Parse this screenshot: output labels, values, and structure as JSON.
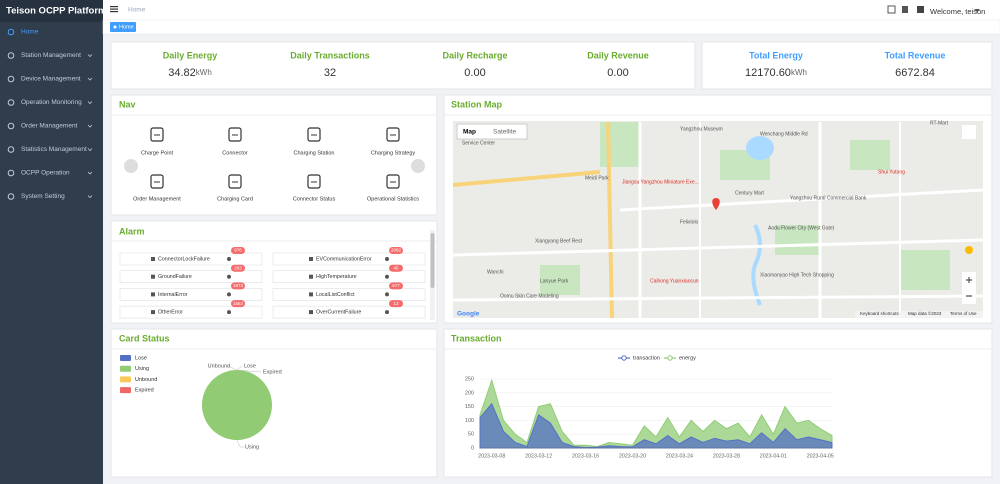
{
  "sidebar": {
    "title": "Teison OCPP Platform",
    "menu": [
      "Home",
      "Station Management",
      "Device Management",
      "Operation Monitoring",
      "Order Management",
      "Statistics Management",
      "OCPP Operation",
      "System Setting"
    ]
  },
  "header": {
    "breadcrumb": "Home",
    "welcome": "Welcome, teison",
    "tab": "Home"
  },
  "stats": [
    {
      "label": "Daily Energy",
      "value": "34.82",
      "unit": "kWh"
    },
    {
      "label": "Daily Transactions",
      "value": "32"
    },
    {
      "label": "Daily Recharge",
      "value": "0.00"
    },
    {
      "label": "Daily Revenue",
      "value": "0.00"
    },
    {
      "label": "Total Energy",
      "value": "12170.60",
      "unit": "kWh"
    },
    {
      "label": "Total Revenue",
      "value": "6672.84"
    }
  ],
  "nav": {
    "title": "Nav",
    "items": [
      "Charge Point",
      "Connector",
      "Charging Station",
      "Charging Strategy",
      "Order Management",
      "Charging Card",
      "Connector Status",
      "Operational Statistics"
    ]
  },
  "alarm": {
    "title": "Alarm",
    "items": [
      {
        "name": "ConnectorLockFailure",
        "count": 876
      },
      {
        "name": "EVCommunicationError",
        "count": 2082
      },
      {
        "name": "GroundFailure",
        "count": 263
      },
      {
        "name": "HighTemperature",
        "count": 45
      },
      {
        "name": "InternalError",
        "count": 1873
      },
      {
        "name": "LocalListConflict",
        "count": 677
      },
      {
        "name": "OtherError",
        "count": 1562
      },
      {
        "name": "OverCurrentFailure",
        "count": 13
      }
    ]
  },
  "station_map": {
    "title": "Station Map",
    "buttons": [
      "Map",
      "Satellite"
    ],
    "places": [
      "Yangzhou Museum",
      "Service Center",
      "Meidi Park",
      "Jiangsu Yangzhou Miniature Exe...",
      "Century Mart",
      "Yangzhou Rural Commercial Bank",
      "Wenchang Middle Rd",
      "Xiangyang Beef Rest",
      "Felixlolo",
      "Aodu Flower City (West Gate)",
      "Wanchi",
      "Lanyue Park",
      "Xiaomanyao High Tech Shopping",
      "Caihong Yuanxiaocun",
      "Oomu Skin Care Modeling",
      "RT-Mart",
      "Shui Yutang"
    ],
    "footer": [
      "Google",
      "Keyboard shortcuts",
      "Map data ©2023",
      "Terms of Use"
    ]
  },
  "chart_data": [
    {
      "type": "pie",
      "title": "Card Status",
      "categories": [
        "Lose",
        "Using",
        "Unbound",
        "Expired"
      ],
      "values": [
        0,
        100,
        0,
        0
      ],
      "colors": [
        "#5470c6",
        "#91cc75",
        "#fac858",
        "#ee6666"
      ]
    },
    {
      "type": "area",
      "title": "Transaction",
      "categories": [
        null,
        "2023-03-08",
        null,
        null,
        null,
        "2023-03-12",
        null,
        null,
        null,
        "2023-03-16",
        null,
        null,
        null,
        "2023-03-20",
        null,
        null,
        null,
        "2023-03-24",
        null,
        null,
        null,
        "2023-03-28",
        null,
        null,
        null,
        "2023-04-01",
        null,
        null,
        null,
        "2023-04-05",
        null
      ],
      "series": [
        {
          "name": "transaction",
          "color": "#5470c6",
          "values": [
            110,
            160,
            60,
            20,
            5,
            120,
            90,
            20,
            5,
            2,
            3,
            8,
            5,
            4,
            30,
            15,
            45,
            15,
            40,
            20,
            35,
            25,
            30,
            15,
            55,
            20,
            70,
            30,
            40,
            30,
            20
          ]
        },
        {
          "name": "energy",
          "color": "#91cc75",
          "values": [
            120,
            245,
            100,
            50,
            20,
            150,
            160,
            60,
            10,
            10,
            5,
            20,
            15,
            10,
            80,
            40,
            110,
            40,
            100,
            60,
            100,
            70,
            90,
            40,
            120,
            50,
            150,
            90,
            100,
            70,
            45
          ]
        }
      ],
      "ylim": [
        0,
        250
      ],
      "yticks": [
        0,
        50,
        100,
        150,
        200,
        250
      ],
      "legend": "top"
    }
  ]
}
